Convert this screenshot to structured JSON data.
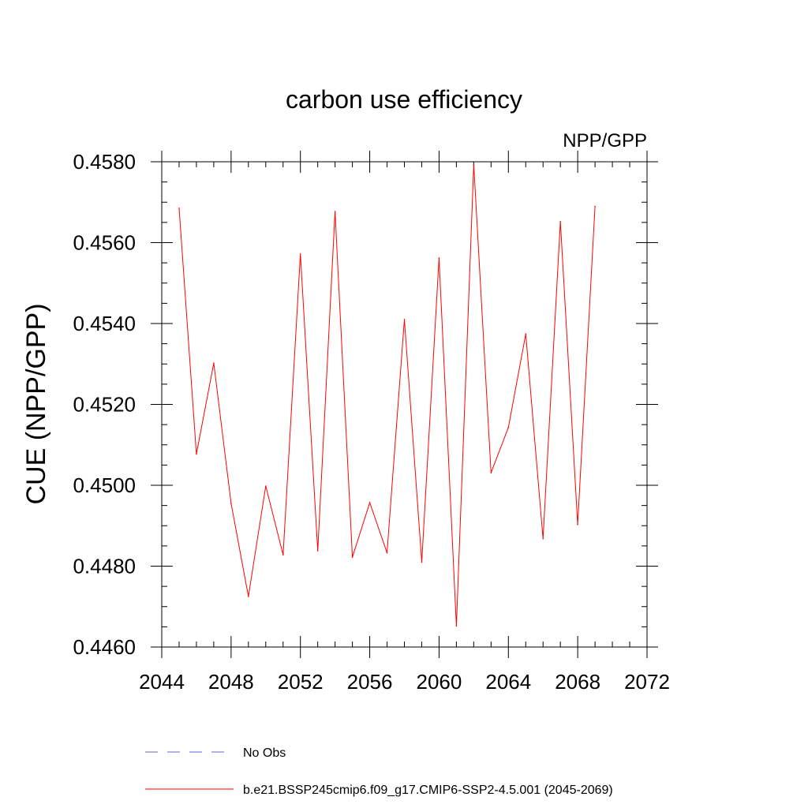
{
  "chart_data": {
    "type": "line",
    "title": "carbon use efficiency",
    "subtitle": "NPP/GPP",
    "xlabel": "",
    "ylabel": "CUE  (NPP/GPP)",
    "xlim": [
      2044,
      2072
    ],
    "ylim": [
      0.446,
      0.458
    ],
    "xticks": [
      "2044",
      "2048",
      "2052",
      "2056",
      "2060",
      "2064",
      "2068",
      "2072"
    ],
    "yticks": [
      "0.4460",
      "0.4480",
      "0.4500",
      "0.4520",
      "0.4540",
      "0.4560",
      "0.4580"
    ],
    "grid": false,
    "legend_position": "bottom",
    "series": [
      {
        "name": "b.e21.BSSP245cmip6.f09_g17.CMIP6-SSP2-4.5.001 (2045-2069)",
        "color": "#ff0000",
        "style": "solid",
        "x": [
          2045,
          2046,
          2047,
          2048,
          2049,
          2050,
          2051,
          2052,
          2053,
          2054,
          2055,
          2056,
          2057,
          2058,
          2059,
          2060,
          2061,
          2062,
          2063,
          2064,
          2065,
          2066,
          2067,
          2068,
          2069
        ],
        "values": [
          0.45685,
          0.45077,
          0.45302,
          0.44955,
          0.44725,
          0.44998,
          0.44828,
          0.45572,
          0.44838,
          0.45677,
          0.44822,
          0.44957,
          0.44833,
          0.4541,
          0.4481,
          0.45562,
          0.44652,
          0.45793,
          0.45031,
          0.45143,
          0.45374,
          0.44868,
          0.45652,
          0.44903,
          0.4569
        ]
      }
    ],
    "legend": [
      {
        "label": "No Obs",
        "color": "#6666cc",
        "style": "dashed"
      },
      {
        "label": "b.e21.BSSP245cmip6.f09_g17.CMIP6-SSP2-4.5.001 (2045-2069)",
        "color": "#ff0000",
        "style": "solid"
      }
    ]
  }
}
